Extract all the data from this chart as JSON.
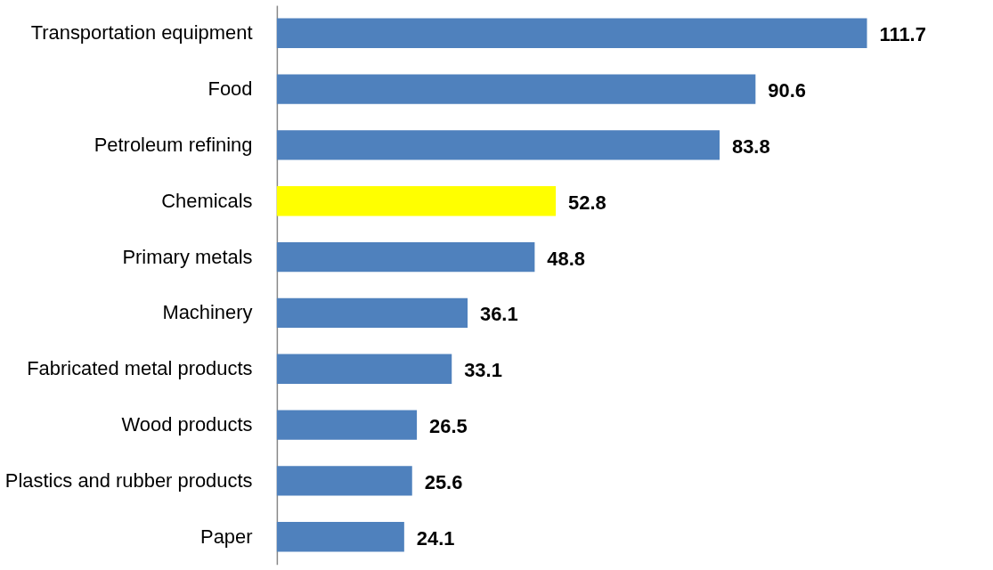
{
  "chart_data": {
    "type": "bar",
    "orientation": "horizontal",
    "categories": [
      "Transportation equipment",
      "Food",
      "Petroleum refining",
      "Chemicals",
      "Primary metals",
      "Machinery",
      "Fabricated metal products",
      "Wood products",
      "Plastics and rubber products",
      "Paper"
    ],
    "values": [
      111.7,
      90.6,
      83.8,
      52.8,
      48.8,
      36.1,
      33.1,
      26.5,
      25.6,
      24.1
    ],
    "colors": [
      "#4f81bd",
      "#4f81bd",
      "#4f81bd",
      "#ffff00",
      "#4f81bd",
      "#4f81bd",
      "#4f81bd",
      "#4f81bd",
      "#4f81bd",
      "#4f81bd"
    ],
    "data_labels": true,
    "grid": false,
    "tick_labels": "y"
  }
}
